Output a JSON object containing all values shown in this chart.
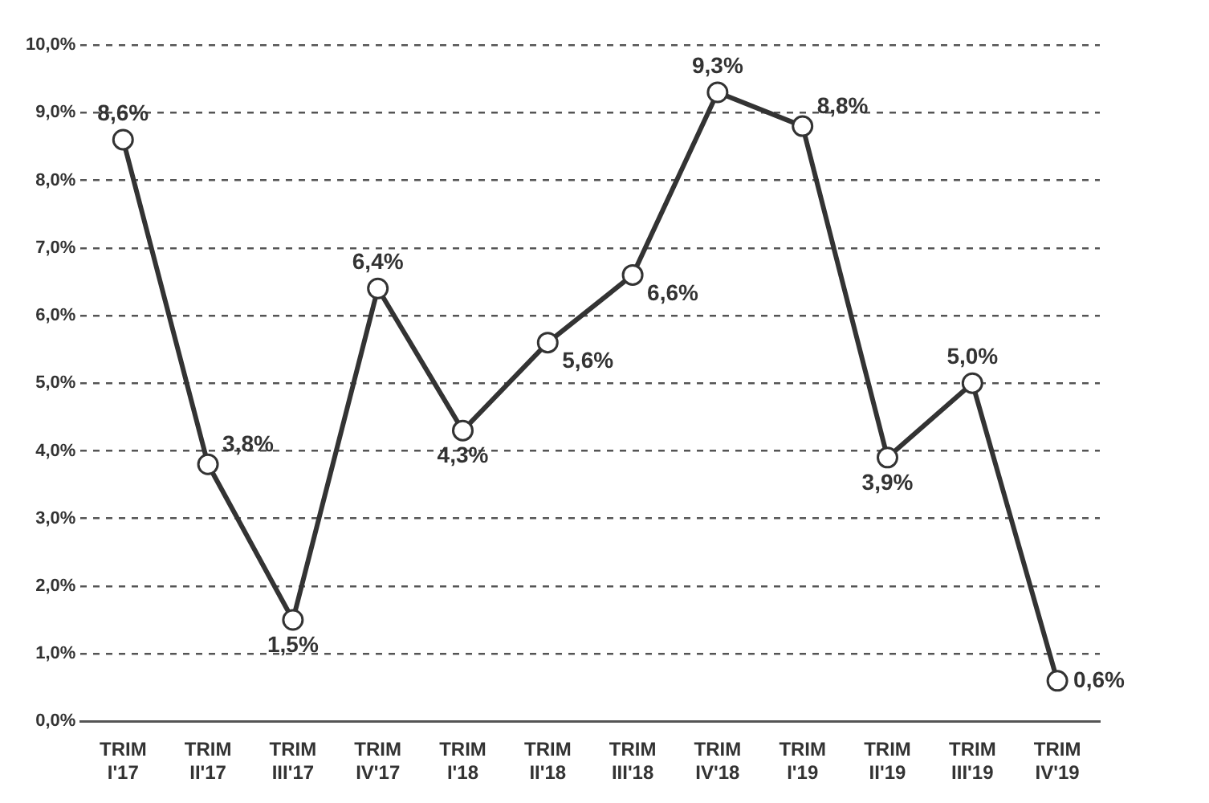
{
  "chart_data": {
    "type": "line",
    "categories": [
      "TRIM I'17",
      "TRIM II'17",
      "TRIM III'17",
      "TRIM IV'17",
      "TRIM I'18",
      "TRIM II'18",
      "TRIM III'18",
      "TRIM IV'18",
      "TRIM I'19",
      "TRIM II'19",
      "TRIM III'19",
      "TRIM IV'19"
    ],
    "series": [
      {
        "color": "#333333",
        "values": [
          8.6,
          3.8,
          1.5,
          6.4,
          4.3,
          5.6,
          6.6,
          9.3,
          8.8,
          3.9,
          5.0,
          0.6
        ],
        "value_labels": [
          "8,6%",
          "3,8%",
          "1,5%",
          "6,4%",
          "4,3%",
          "5,6%",
          "6,6%",
          "9,3%",
          "8,8%",
          "3,9%",
          "5,0%",
          "0,6%"
        ]
      }
    ],
    "ylim": [
      0,
      10
    ],
    "yticks": [
      {
        "value": 0,
        "label": "0,0%"
      },
      {
        "value": 1,
        "label": "1,0%"
      },
      {
        "value": 2,
        "label": "2,0%"
      },
      {
        "value": 3,
        "label": "3,0%"
      },
      {
        "value": 4,
        "label": "4,0%"
      },
      {
        "value": 5,
        "label": "5,0%"
      },
      {
        "value": 6,
        "label": "6,0%"
      },
      {
        "value": 7,
        "label": "7,0%"
      },
      {
        "value": 8,
        "label": "8,0%"
      },
      {
        "value": 9,
        "label": "9,0%"
      },
      {
        "value": 10,
        "label": "10,0%"
      }
    ],
    "grid": "y",
    "marker": "circle",
    "line_style": "solid",
    "legend": false
  }
}
